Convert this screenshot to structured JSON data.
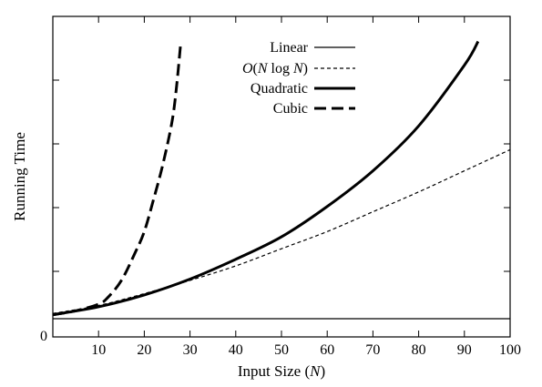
{
  "chart_data": {
    "type": "line",
    "xlabel_prefix": "Input Size (",
    "xlabel_var": "N",
    "xlabel_suffix": ")",
    "ylabel": "Running Time",
    "xlim": [
      0,
      100
    ],
    "x_ticks": [
      10,
      20,
      30,
      40,
      50,
      60,
      70,
      80,
      90,
      100
    ],
    "y_ticks": [
      "0"
    ],
    "grid": false,
    "legend_position": "top-center",
    "series": [
      {
        "name": "Linear",
        "dash": "solid",
        "weight": "thin",
        "points": [
          [
            0,
            0
          ],
          [
            100,
            0
          ]
        ]
      },
      {
        "name_parts": [
          "O",
          "(",
          "N",
          " log ",
          "N",
          ")"
        ],
        "dash": "short-dash",
        "weight": "thin",
        "points": [
          [
            0,
            0.2
          ],
          [
            10,
            0.5
          ],
          [
            20,
            0.95
          ],
          [
            30,
            1.45
          ],
          [
            40,
            2.0
          ],
          [
            50,
            2.65
          ],
          [
            60,
            3.3
          ],
          [
            70,
            4.05
          ],
          [
            80,
            4.8
          ],
          [
            90,
            5.6
          ],
          [
            100,
            6.4
          ]
        ]
      },
      {
        "name": "Quadratic",
        "dash": "solid",
        "weight": "thick",
        "points": [
          [
            0,
            0.15
          ],
          [
            10,
            0.45
          ],
          [
            20,
            0.9
          ],
          [
            30,
            1.5
          ],
          [
            40,
            2.25
          ],
          [
            50,
            3.1
          ],
          [
            60,
            4.25
          ],
          [
            70,
            5.6
          ],
          [
            80,
            7.3
          ],
          [
            90,
            9.6
          ],
          [
            93,
            10.5
          ]
        ]
      },
      {
        "name": "Cubic",
        "dash": "long-dash",
        "weight": "thick",
        "points": [
          [
            0,
            0.15
          ],
          [
            5,
            0.3
          ],
          [
            10,
            0.55
          ],
          [
            12,
            0.8
          ],
          [
            15,
            1.45
          ],
          [
            18,
            2.5
          ],
          [
            20,
            3.3
          ],
          [
            22,
            4.5
          ],
          [
            24,
            5.8
          ],
          [
            26,
            7.4
          ],
          [
            27,
            8.7
          ],
          [
            28,
            10.5
          ]
        ]
      }
    ]
  }
}
